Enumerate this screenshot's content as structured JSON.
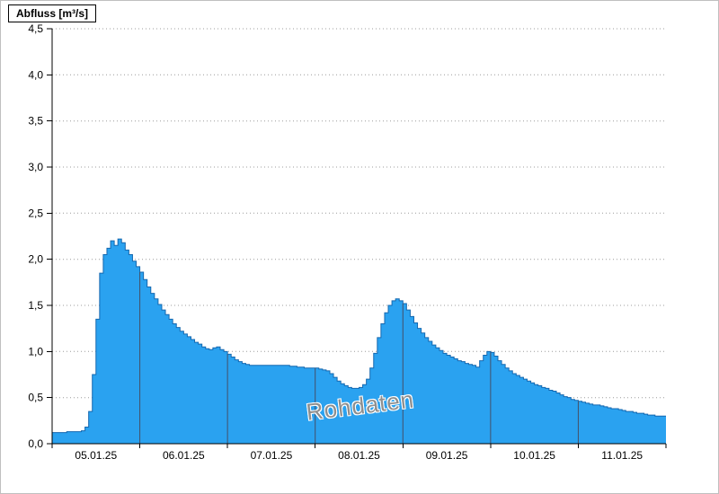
{
  "header": {
    "y_axis_title": "Abfluss [m³/s]"
  },
  "watermark": "Rohdaten",
  "chart_data": {
    "type": "area",
    "title": "",
    "xlabel": "",
    "ylabel": "Abfluss [m³/s]",
    "ylim": [
      0,
      4.5
    ],
    "y_tick_step": 0.5,
    "y_tick_labels": [
      "0,0",
      "0,5",
      "1,0",
      "1,5",
      "2,0",
      "2,5",
      "3,0",
      "3,5",
      "4,0",
      "4,5"
    ],
    "x_tick_labels": [
      "05.01.25",
      "06.01.25",
      "07.01.25",
      "08.01.25",
      "09.01.25",
      "10.01.25",
      "11.01.25"
    ],
    "x_range_days": 7,
    "step": "hourly",
    "grid": "horizontal-dotted",
    "legend": "none",
    "series": [
      {
        "name": "Abfluss Rohdaten",
        "unit": "m³/s",
        "values": [
          0.12,
          0.12,
          0.12,
          0.12,
          0.13,
          0.13,
          0.13,
          0.13,
          0.14,
          0.18,
          0.35,
          0.75,
          1.35,
          1.85,
          2.05,
          2.12,
          2.2,
          2.15,
          2.22,
          2.18,
          2.1,
          2.05,
          1.98,
          1.92,
          1.86,
          1.78,
          1.7,
          1.63,
          1.57,
          1.51,
          1.45,
          1.4,
          1.35,
          1.3,
          1.26,
          1.22,
          1.19,
          1.16,
          1.13,
          1.1,
          1.08,
          1.05,
          1.03,
          1.02,
          1.04,
          1.05,
          1.02,
          1.0,
          0.97,
          0.94,
          0.91,
          0.89,
          0.87,
          0.86,
          0.85,
          0.85,
          0.85,
          0.85,
          0.85,
          0.85,
          0.85,
          0.85,
          0.85,
          0.85,
          0.85,
          0.84,
          0.84,
          0.83,
          0.83,
          0.82,
          0.82,
          0.82,
          0.82,
          0.81,
          0.8,
          0.79,
          0.76,
          0.72,
          0.68,
          0.65,
          0.63,
          0.61,
          0.6,
          0.6,
          0.61,
          0.64,
          0.7,
          0.82,
          0.98,
          1.15,
          1.3,
          1.42,
          1.5,
          1.55,
          1.57,
          1.55,
          1.52,
          1.45,
          1.38,
          1.31,
          1.25,
          1.2,
          1.15,
          1.11,
          1.07,
          1.04,
          1.01,
          0.98,
          0.96,
          0.94,
          0.92,
          0.9,
          0.89,
          0.87,
          0.86,
          0.85,
          0.83,
          0.9,
          0.96,
          1.0,
          0.99,
          0.95,
          0.9,
          0.86,
          0.82,
          0.79,
          0.76,
          0.74,
          0.72,
          0.7,
          0.68,
          0.66,
          0.64,
          0.63,
          0.61,
          0.6,
          0.58,
          0.57,
          0.55,
          0.53,
          0.51,
          0.5,
          0.48,
          0.47,
          0.46,
          0.45,
          0.44,
          0.43,
          0.42,
          0.42,
          0.41,
          0.4,
          0.39,
          0.38,
          0.38,
          0.37,
          0.36,
          0.35,
          0.35,
          0.34,
          0.33,
          0.33,
          0.32,
          0.31,
          0.31,
          0.3,
          0.3,
          0.3
        ]
      }
    ],
    "colors": {
      "fill": "#2aa2f0",
      "stroke": "#1468b0",
      "grid": "#9c9c9c",
      "day_line": "#445069",
      "axis": "#000000",
      "watermark": "#8e8e8e"
    }
  }
}
